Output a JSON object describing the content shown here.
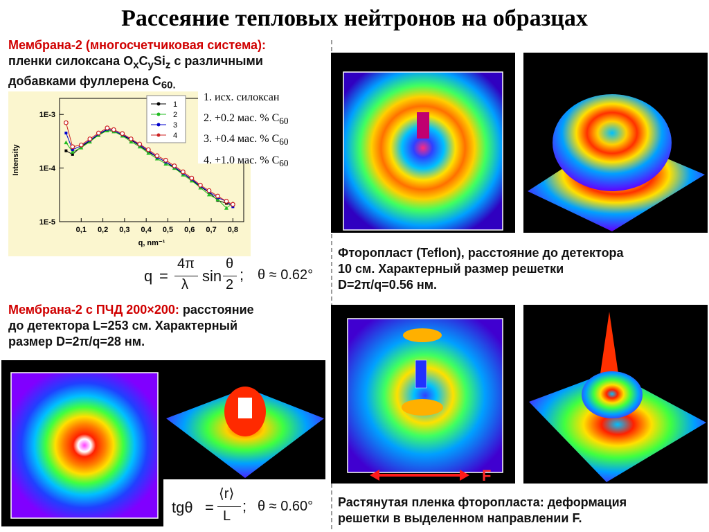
{
  "title": "Рассеяние тепловых нейтронов на образцах",
  "section1": {
    "heading": "Мембрана-2 (многосчетчиковая система):",
    "line2_pre": "пленки силоксана O",
    "sub_x": "x",
    "mid_c": "C",
    "sub_y": "y",
    "mid_si": "Si",
    "sub_z": "z",
    "line2_post": " с различными",
    "line3_pre": "добавками фуллерена C",
    "line3_sub": "60.",
    "list": [
      {
        "text": "1. исх. силоксан",
        "sub": ""
      },
      {
        "text": "2. +0.2 мас. % C",
        "sub": "60"
      },
      {
        "text": "3. +0.4 мас. % C",
        "sub": "60"
      },
      {
        "text": "4. +1.0 мас. % C",
        "sub": "60"
      }
    ],
    "formula": {
      "lhs": "q",
      "eq": "=",
      "num": "4π",
      "den": "λ",
      "sin": "sin",
      "tnum": "θ",
      "tden": "2",
      "semi": ";",
      "approx": "θ ≈ 0.62°"
    }
  },
  "chart_data": {
    "type": "scatter",
    "xlabel": "q, nm⁻¹",
    "ylabel": "Intensity",
    "x_ticks": [
      "0,1",
      "0,2",
      "0,3",
      "0,4",
      "0,5",
      "0,6",
      "0,7",
      "0,8"
    ],
    "y_ticks": [
      "1E-5",
      "1E-4",
      "1E-3"
    ],
    "xlim": [
      0.0,
      0.85
    ],
    "ylim_log": [
      -5,
      -2.7
    ],
    "log_y": true,
    "legend": [
      "1",
      "2",
      "3",
      "4"
    ],
    "series_colors": [
      "#000000",
      "#22bb22",
      "#0000cc",
      "#cc2222"
    ],
    "series": [
      {
        "name": "1",
        "x": [
          0.03,
          0.06,
          0.1,
          0.14,
          0.18,
          0.22,
          0.25,
          0.29,
          0.33,
          0.37,
          0.41,
          0.45,
          0.49,
          0.53,
          0.57,
          0.61,
          0.65,
          0.69,
          0.73,
          0.77,
          0.8
        ],
        "y": [
          0.00021,
          0.00018,
          0.00025,
          0.00032,
          0.00042,
          0.00052,
          0.0005,
          0.00041,
          0.00033,
          0.00026,
          0.0002,
          0.00016,
          0.00013,
          0.0001,
          8e-05,
          6e-05,
          4.5e-05,
          3.5e-05,
          2.5e-05,
          2.2e-05,
          2e-05
        ]
      },
      {
        "name": "2",
        "x": [
          0.03,
          0.06,
          0.1,
          0.14,
          0.18,
          0.22,
          0.25,
          0.29,
          0.33,
          0.37,
          0.41,
          0.45,
          0.49,
          0.53,
          0.57,
          0.61,
          0.65,
          0.69,
          0.73,
          0.77,
          0.8
        ],
        "y": [
          0.0003,
          0.0002,
          0.00024,
          0.00031,
          0.00041,
          0.0005,
          0.00048,
          0.0004,
          0.00031,
          0.00025,
          0.00019,
          0.00015,
          0.00012,
          0.0001,
          7.5e-05,
          5.8e-05,
          4.3e-05,
          3.2e-05,
          2.6e-05,
          1.8e-05,
          2.2e-05
        ]
      },
      {
        "name": "3",
        "x": [
          0.03,
          0.06,
          0.1,
          0.14,
          0.18,
          0.22,
          0.25,
          0.29,
          0.33,
          0.37,
          0.41,
          0.45,
          0.49,
          0.53,
          0.57,
          0.61,
          0.65,
          0.69,
          0.73,
          0.77,
          0.8
        ],
        "y": [
          0.00045,
          0.00022,
          0.00026,
          0.00033,
          0.00043,
          0.00053,
          0.0005,
          0.00042,
          0.00034,
          0.00027,
          0.00021,
          0.00016,
          0.00013,
          0.000105,
          8e-05,
          6.2e-05,
          4.6e-05,
          3.6e-05,
          2.8e-05,
          2.4e-05,
          1.9e-05
        ]
      },
      {
        "name": "4",
        "x": [
          0.03,
          0.06,
          0.1,
          0.14,
          0.18,
          0.22,
          0.25,
          0.29,
          0.33,
          0.37,
          0.41,
          0.45,
          0.49,
          0.53,
          0.57,
          0.61,
          0.65,
          0.69,
          0.73,
          0.77,
          0.8
        ],
        "y": [
          0.0007,
          0.00025,
          0.00027,
          0.00035,
          0.00045,
          0.00056,
          0.00052,
          0.00044,
          0.00035,
          0.00028,
          0.00022,
          0.00017,
          0.00014,
          0.00011,
          8.5e-05,
          6.5e-05,
          4.8e-05,
          3.8e-05,
          3e-05,
          2.4e-05,
          2.1e-05
        ]
      }
    ]
  },
  "section2": {
    "heading": "Мембрана-2 с ПЧД 200×200:",
    "line1_rest": " расстояние",
    "line2": "до детектора L=253 см. Характерный",
    "line3": "размер D=2π/q=28 нм.",
    "formula": {
      "tg": "tgθ",
      "eq": "=",
      "num": "⟨r⟩",
      "den": "L",
      "semi": ";",
      "approx": "θ ≈ 0.60°"
    }
  },
  "caption_teflon": {
    "line1": "Фторопласт (Teflon), расстояние до детектора",
    "line2": "10 см. Характерный размер решетки",
    "line3": "D=2π/q=0.56 нм."
  },
  "caption_stretched": {
    "line1": "Растянутая пленка фторопласта: деформация",
    "line2": "решетки в выделенном направлении F."
  },
  "arrow_label": "F"
}
